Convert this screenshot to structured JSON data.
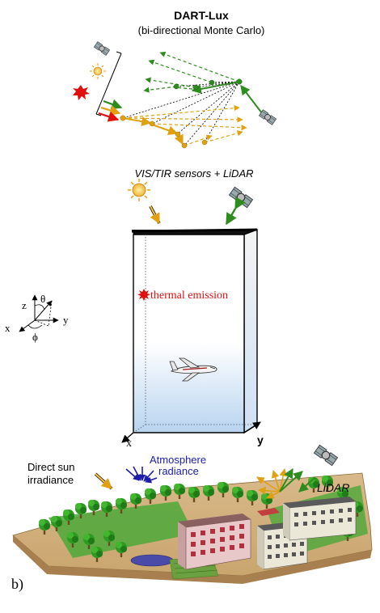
{
  "title": "DART-Lux",
  "subtitle": "(bi-directional Monte Carlo)",
  "sensors_label_a": "VIS/TIR sensors + ",
  "sensors_label_b": "LiDAR",
  "thermal_label": "thermal emission",
  "axes_3d": {
    "x": "x",
    "y": "y"
  },
  "angle_legend": {
    "z": "z",
    "theta": "θ",
    "y": "y",
    "x": "x",
    "phi": "ϕ"
  },
  "direct_sun_line1": "Direct sun",
  "direct_sun_line2": "irradiance",
  "atmosphere_line1": "Atmosphere",
  "atmosphere_line2": "radiance",
  "lidar_label": "LiDAR",
  "panel_label": "b)",
  "colors": {
    "green_path": "#2e8b1e",
    "orange_path": "#e0a010",
    "red_source": "#e01010",
    "atmosphere_blue": "#1c1ca8",
    "thermal_red": "#e01010",
    "box_gradient_bottom": "#b8d4f0"
  }
}
